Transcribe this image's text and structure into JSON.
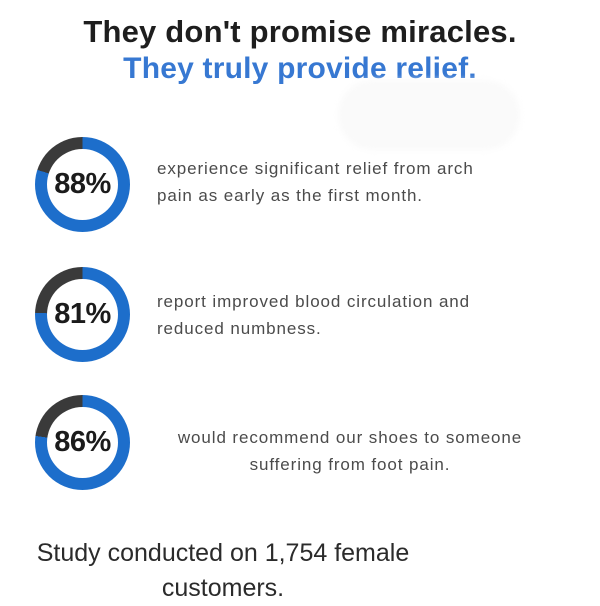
{
  "header": {
    "title": "They don't promise miracles.",
    "subtitle": "They truly provide relief."
  },
  "stats": [
    {
      "percent_label": "88%",
      "value": 88,
      "ring_dark_deg": 72,
      "align": "left",
      "lines": [
        "experience significant relief from arch",
        "pain as early as the first month."
      ]
    },
    {
      "percent_label": "81%",
      "value": 81,
      "ring_dark_deg": 88,
      "align": "left",
      "lines": [
        "report improved blood circulation and",
        "reduced numbness."
      ]
    },
    {
      "percent_label": "86%",
      "value": 86,
      "ring_dark_deg": 82,
      "align": "center",
      "lines": [
        "would recommend our shoes to someone",
        "suffering from foot pain."
      ]
    }
  ],
  "footer": {
    "lines": [
      "Study conducted on 1,754 female",
      "customers."
    ]
  },
  "colors": {
    "background": "#ffffff",
    "accent_blue": "#3778d2",
    "ring_blue": "#1d6ecb",
    "ring_dark": "#3a3a3a",
    "title_text": "#1e1e1e",
    "percent_text": "#1b1b1b",
    "body_text": "#4b4b4b",
    "footer_text": "#2b2b2b",
    "blob": "#fafafa"
  },
  "chart_data": {
    "type": "pie",
    "subtype": "donut-progress-rings",
    "title": "They don't promise miracles. They truly provide relief.",
    "unit": "percent",
    "series": [
      {
        "name": "experience significant relief from arch pain as early as the first month.",
        "value": 88
      },
      {
        "name": "report improved blood circulation and reduced numbness.",
        "value": 81
      },
      {
        "name": "would recommend our shoes to someone suffering from foot pain.",
        "value": 86
      }
    ],
    "annotation": "Study conducted on 1,754 female customers.",
    "legend_position": "none",
    "colors": {
      "progress": "#1d6ecb",
      "remainder": "#3a3a3a"
    }
  }
}
